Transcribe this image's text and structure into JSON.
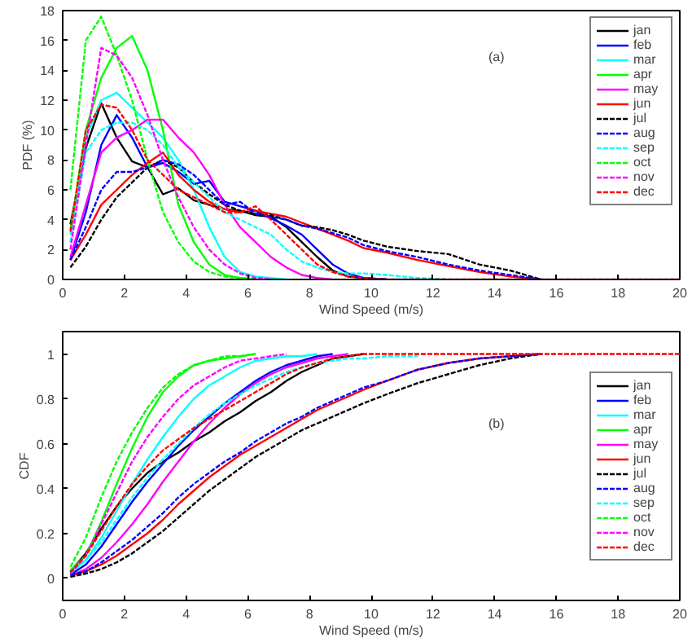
{
  "chart_data": [
    {
      "type": "line",
      "xlabel": "Wind Speed (m/s)",
      "ylabel": "PDF (%)",
      "annotations": [
        "(a)"
      ],
      "xlim": [
        0,
        20
      ],
      "ylim": [
        0,
        18
      ],
      "xticks": [
        0,
        2,
        4,
        6,
        8,
        10,
        12,
        14,
        16,
        18,
        20
      ],
      "yticks": [
        0,
        2,
        4,
        6,
        8,
        10,
        12,
        14,
        16,
        18
      ],
      "grid": false,
      "legend": "top right",
      "marker": "none",
      "x": [
        0.25,
        0.75,
        1.25,
        1.75,
        2.25,
        2.75,
        3.25,
        3.75,
        4.25,
        4.75,
        5.25,
        5.75,
        6.25,
        6.75,
        7.25,
        7.75,
        8.25,
        8.75,
        9.25,
        9.75,
        10.5,
        11.5,
        12.5,
        13.5,
        14.5,
        15.5,
        17,
        20
      ],
      "series": [
        {
          "name": "jan",
          "color": "#000000",
          "line_style": "solid",
          "values": [
            3.7,
            8.8,
            11.8,
            9.5,
            7.9,
            7.5,
            5.7,
            6.1,
            5.3,
            5.0,
            4.7,
            4.6,
            4.3,
            4.2,
            3.5,
            2.5,
            1.5,
            0.6,
            0.2,
            0.1,
            0,
            null,
            null,
            null,
            null,
            null,
            null,
            null
          ]
        },
        {
          "name": "feb",
          "color": "#0000ff",
          "line_style": "solid",
          "values": [
            1.3,
            4.5,
            9,
            11,
            9.5,
            7.5,
            7.8,
            7.2,
            6.4,
            6.6,
            5.2,
            4.9,
            4.6,
            4.1,
            3.6,
            3.0,
            2.0,
            1.0,
            0.4,
            0.1,
            0,
            null,
            null,
            null,
            null,
            null,
            null,
            null
          ]
        },
        {
          "name": "mar",
          "color": "#00ffff",
          "line_style": "solid",
          "values": [
            3,
            9.5,
            12,
            12.5,
            11.5,
            10.5,
            9.5,
            8,
            6,
            3.5,
            1.5,
            0.5,
            0.2,
            0.1,
            0,
            null,
            null,
            null,
            null,
            null,
            null,
            null,
            null,
            null,
            null,
            null,
            null,
            null
          ]
        },
        {
          "name": "apr",
          "color": "#00ff00",
          "line_style": "solid",
          "values": [
            3.3,
            10,
            13.5,
            15.5,
            16.3,
            14,
            10,
            5,
            2.5,
            1,
            0.3,
            0.1,
            0,
            null,
            null,
            null,
            null,
            null,
            null,
            null,
            null,
            null,
            null,
            null,
            null,
            null,
            null,
            null
          ]
        },
        {
          "name": "may",
          "color": "#ff00ff",
          "line_style": "solid",
          "values": [
            1.5,
            5,
            8.5,
            9.5,
            10,
            10.7,
            10.7,
            9.5,
            8.5,
            7,
            5,
            3.5,
            2.5,
            1.5,
            0.8,
            0.3,
            0.1,
            0,
            null,
            null,
            null,
            null,
            null,
            null,
            null,
            null,
            null,
            null
          ]
        },
        {
          "name": "jun",
          "color": "#ff0000",
          "line_style": "solid",
          "values": [
            1.3,
            3,
            5,
            6,
            7,
            7.8,
            8.5,
            7,
            6,
            5.2,
            4.7,
            4.5,
            4.6,
            4.4,
            4.2,
            3.8,
            3.4,
            3.0,
            2.6,
            2.1,
            1.8,
            1.3,
            0.9,
            0.5,
            0.2,
            0,
            null,
            null
          ]
        },
        {
          "name": "jul",
          "color": "#000000",
          "line_style": "dashed",
          "values": [
            0.8,
            2.2,
            4,
            5.5,
            6.5,
            7.5,
            8,
            7.5,
            6.5,
            5.7,
            5,
            4.6,
            4.4,
            4.3,
            4.0,
            3.6,
            3.5,
            3.3,
            3.0,
            2.6,
            2.2,
            1.9,
            1.7,
            1.0,
            0.6,
            0,
            null,
            null
          ]
        },
        {
          "name": "aug",
          "color": "#0000ff",
          "line_style": "dashed",
          "values": [
            1.3,
            3.5,
            6,
            7.2,
            7.2,
            7.5,
            8,
            7.7,
            7.0,
            6.0,
            5.0,
            5.2,
            4.4,
            4.2,
            4.0,
            3.6,
            3.4,
            3.1,
            2.8,
            2.3,
            1.9,
            1.5,
            1.0,
            0.6,
            0.3,
            0,
            null,
            null
          ]
        },
        {
          "name": "sep",
          "color": "#00ffff",
          "line_style": "dashed",
          "values": [
            2.5,
            8.5,
            10,
            10.5,
            10.5,
            10,
            9,
            7.5,
            6.5,
            5.5,
            4.5,
            4,
            3.5,
            3,
            2,
            1.2,
            0.8,
            0.5,
            0.4,
            0.4,
            0.3,
            0.1,
            0,
            null,
            null,
            null,
            null,
            null
          ]
        },
        {
          "name": "oct",
          "color": "#00ff00",
          "line_style": "dashed",
          "values": [
            6,
            16,
            17.6,
            15,
            12,
            8,
            4.5,
            2.5,
            1.2,
            0.5,
            0.2,
            0.1,
            0,
            null,
            null,
            null,
            null,
            null,
            null,
            null,
            null,
            null,
            null,
            null,
            null,
            null,
            null,
            null
          ]
        },
        {
          "name": "nov",
          "color": "#ff00ff",
          "line_style": "dashed",
          "values": [
            2,
            9,
            15.5,
            15,
            13.5,
            11,
            8,
            5.5,
            3.5,
            2,
            1,
            0.4,
            0.1,
            0,
            null,
            null,
            null,
            null,
            null,
            null,
            null,
            null,
            null,
            null,
            null,
            null,
            null,
            null
          ]
        },
        {
          "name": "dec",
          "color": "#ff0000",
          "line_style": "dashed",
          "values": [
            3.2,
            10,
            11.7,
            11.5,
            10,
            8,
            7,
            6,
            5.5,
            5,
            4.5,
            4.5,
            4.9,
            4,
            3,
            2,
            1,
            0.5,
            0.2,
            0.1,
            0,
            0,
            0,
            0,
            0,
            0,
            0,
            0
          ]
        }
      ]
    },
    {
      "type": "line",
      "xlabel": "Wind Speed (m/s)",
      "ylabel": "CDF",
      "annotations": [
        "(b)"
      ],
      "xlim": [
        0,
        20
      ],
      "ylim": [
        -0.1,
        1.1
      ],
      "xticks": [
        0,
        2,
        4,
        6,
        8,
        10,
        12,
        14,
        16,
        18,
        20
      ],
      "yticks": [
        0,
        0.2,
        0.4,
        0.6,
        0.8,
        1
      ],
      "grid": false,
      "legend": "right",
      "marker": "none",
      "x": [
        0.25,
        0.75,
        1.25,
        1.75,
        2.25,
        2.75,
        3.25,
        3.75,
        4.25,
        4.75,
        5.25,
        5.75,
        6.25,
        6.75,
        7.25,
        7.75,
        8.25,
        8.75,
        9.25,
        9.75,
        10.5,
        11.5,
        12.5,
        13.5,
        14.5,
        15.5,
        17,
        20
      ],
      "series": [
        {
          "name": "jan",
          "color": "#000000",
          "line_style": "solid",
          "values": [
            0.03,
            0.11,
            0.22,
            0.32,
            0.4,
            0.47,
            0.52,
            0.56,
            0.61,
            0.65,
            0.7,
            0.74,
            0.79,
            0.83,
            0.88,
            0.92,
            0.95,
            0.98,
            0.99,
            1,
            null,
            null,
            null,
            null,
            null,
            null,
            null,
            null
          ]
        },
        {
          "name": "feb",
          "color": "#0000ff",
          "line_style": "solid",
          "values": [
            0.015,
            0.06,
            0.14,
            0.24,
            0.34,
            0.43,
            0.51,
            0.59,
            0.66,
            0.72,
            0.78,
            0.83,
            0.88,
            0.92,
            0.95,
            0.97,
            0.99,
            1,
            null,
            null,
            null,
            null,
            null,
            null,
            null,
            null,
            null,
            null
          ]
        },
        {
          "name": "mar",
          "color": "#00ffff",
          "line_style": "solid",
          "values": [
            0.025,
            0.08,
            0.18,
            0.3,
            0.42,
            0.53,
            0.63,
            0.72,
            0.8,
            0.86,
            0.9,
            0.94,
            0.97,
            0.98,
            0.99,
            0.99,
            1,
            null,
            null,
            null,
            null,
            null,
            null,
            null,
            null,
            null,
            null,
            null
          ]
        },
        {
          "name": "apr",
          "color": "#00ff00",
          "line_style": "solid",
          "values": [
            0.035,
            0.1,
            0.25,
            0.42,
            0.58,
            0.72,
            0.83,
            0.9,
            0.95,
            0.97,
            0.98,
            0.99,
            1,
            null,
            null,
            null,
            null,
            null,
            null,
            null,
            null,
            null,
            null,
            null,
            null,
            null,
            null,
            null
          ]
        },
        {
          "name": "may",
          "color": "#ff00ff",
          "line_style": "solid",
          "values": [
            0.01,
            0.04,
            0.09,
            0.16,
            0.24,
            0.33,
            0.43,
            0.52,
            0.61,
            0.69,
            0.76,
            0.82,
            0.87,
            0.91,
            0.94,
            0.96,
            0.98,
            0.99,
            1,
            null,
            null,
            null,
            null,
            null,
            null,
            null,
            null,
            null
          ]
        },
        {
          "name": "jun",
          "color": "#ff0000",
          "line_style": "solid",
          "values": [
            0.01,
            0.03,
            0.06,
            0.1,
            0.15,
            0.2,
            0.26,
            0.33,
            0.39,
            0.45,
            0.5,
            0.55,
            0.59,
            0.63,
            0.67,
            0.71,
            0.75,
            0.78,
            0.81,
            0.84,
            0.88,
            0.93,
            0.96,
            0.98,
            0.99,
            1,
            null,
            null
          ]
        },
        {
          "name": "jul",
          "color": "#000000",
          "line_style": "dashed",
          "values": [
            0.005,
            0.02,
            0.04,
            0.07,
            0.11,
            0.16,
            0.21,
            0.27,
            0.33,
            0.39,
            0.44,
            0.49,
            0.54,
            0.58,
            0.62,
            0.66,
            0.69,
            0.72,
            0.75,
            0.78,
            0.82,
            0.87,
            0.91,
            0.95,
            0.98,
            1,
            null,
            null
          ]
        },
        {
          "name": "aug",
          "color": "#0000ff",
          "line_style": "dashed",
          "values": [
            0.015,
            0.03,
            0.07,
            0.12,
            0.17,
            0.23,
            0.29,
            0.36,
            0.42,
            0.47,
            0.52,
            0.56,
            0.61,
            0.65,
            0.69,
            0.72,
            0.76,
            0.79,
            0.82,
            0.85,
            0.88,
            0.93,
            0.96,
            0.98,
            0.99,
            1,
            null,
            null
          ]
        },
        {
          "name": "sep",
          "color": "#00ffff",
          "line_style": "dashed",
          "values": [
            0.02,
            0.08,
            0.16,
            0.26,
            0.36,
            0.45,
            0.53,
            0.6,
            0.67,
            0.73,
            0.78,
            0.82,
            0.86,
            0.89,
            0.92,
            0.94,
            0.96,
            0.97,
            0.98,
            0.98,
            0.99,
            0.99,
            null,
            null,
            null,
            null,
            null,
            null
          ]
        },
        {
          "name": "oct",
          "color": "#00ff00",
          "line_style": "dashed",
          "values": [
            0.05,
            0.18,
            0.36,
            0.52,
            0.65,
            0.76,
            0.85,
            0.91,
            0.95,
            0.97,
            0.99,
            0.99,
            1,
            null,
            null,
            null,
            null,
            null,
            null,
            null,
            null,
            null,
            null,
            null,
            null,
            null,
            null,
            null
          ]
        },
        {
          "name": "nov",
          "color": "#ff00ff",
          "line_style": "dashed",
          "values": [
            0.02,
            0.1,
            0.24,
            0.38,
            0.52,
            0.63,
            0.72,
            0.8,
            0.86,
            0.9,
            0.94,
            0.97,
            0.98,
            0.99,
            1,
            null,
            null,
            null,
            null,
            null,
            null,
            null,
            null,
            null,
            null,
            null,
            null,
            null
          ]
        },
        {
          "name": "dec",
          "color": "#ff0000",
          "line_style": "dashed",
          "values": [
            0.025,
            0.1,
            0.21,
            0.32,
            0.42,
            0.5,
            0.57,
            0.62,
            0.67,
            0.71,
            0.75,
            0.79,
            0.83,
            0.87,
            0.91,
            0.94,
            0.96,
            0.98,
            0.99,
            1,
            1,
            1,
            1,
            1,
            1,
            1,
            1,
            1
          ]
        }
      ]
    }
  ]
}
